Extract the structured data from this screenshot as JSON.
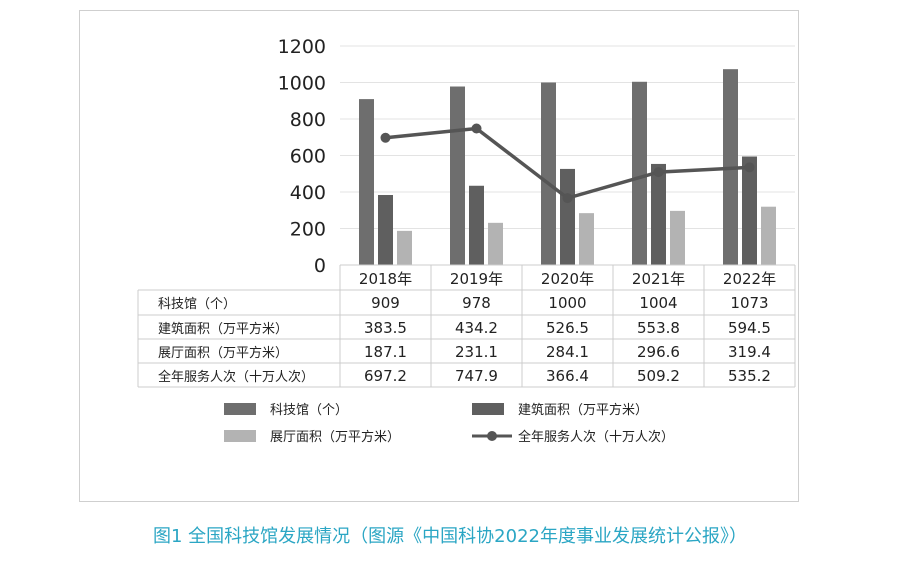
{
  "figure": {
    "caption": "图1 全国科技馆发展情况（图源《中国科协2022年度事业发展统计公报》）"
  },
  "colors": {
    "museums": "#6e6e6e",
    "floor_area": "#5f5f5f",
    "exhibit_area": "#b3b3b3",
    "visitors": "#555555",
    "grid": "#e3e3e3",
    "table_border": "#cccccc",
    "caption": "#2ba6c4"
  },
  "chart_data": {
    "type": "bar",
    "categories": [
      "2018年",
      "2019年",
      "2020年",
      "2021年",
      "2022年"
    ],
    "ylim": [
      0,
      1200
    ],
    "yticks": [
      0,
      200,
      400,
      600,
      800,
      1000,
      1200
    ],
    "grid": true,
    "legend_position": "bottom",
    "series": [
      {
        "name": "科技馆（个）",
        "type": "bar",
        "values": [
          909,
          978,
          1000,
          1004,
          1073
        ],
        "labels": [
          "909",
          "978",
          "1000",
          "1004",
          "1073"
        ]
      },
      {
        "name": "建筑面积（万平方米）",
        "type": "bar",
        "values": [
          383.5,
          434.2,
          526.5,
          553.8,
          594.5
        ],
        "labels": [
          "383.5",
          "434.2",
          "526.5",
          "553.8",
          "594.5"
        ]
      },
      {
        "name": "展厅面积（万平方米）",
        "type": "bar",
        "values": [
          187.1,
          231.1,
          284.1,
          296.6,
          319.4
        ],
        "labels": [
          "187.1",
          "231.1",
          "284.1",
          "296.6",
          "319.4"
        ]
      },
      {
        "name": "全年服务人次（十万人次）",
        "type": "line",
        "values": [
          697.2,
          747.9,
          366.4,
          509.2,
          535.2
        ],
        "labels": [
          "697.2",
          "747.9",
          "366.4",
          "509.2",
          "535.2"
        ]
      }
    ]
  }
}
